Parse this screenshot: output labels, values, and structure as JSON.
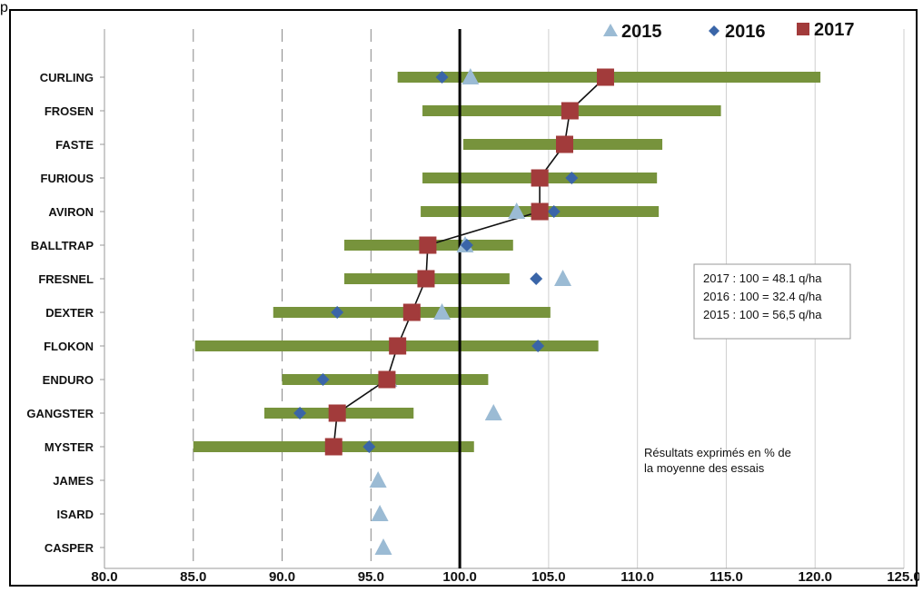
{
  "corner_mark": "p",
  "chart_data": {
    "type": "range-dot",
    "categories": [
      "CURLING",
      "FROSEN",
      "FASTE",
      "FURIOUS",
      "AVIRON",
      "BALLTRAP",
      "FRESNEL",
      "DEXTER",
      "FLOKON",
      "ENDURO",
      "GANGSTER",
      "MYSTER",
      "JAMES",
      "ISARD",
      "CASPER"
    ],
    "xlim": [
      80.0,
      125.0
    ],
    "xticks": [
      "80.0",
      "85.0",
      "90.0",
      "95.0",
      "100.0",
      "105.0",
      "110.0",
      "115.0",
      "120.0",
      "125.0"
    ],
    "xtick_values": [
      80,
      85,
      90,
      95,
      100,
      105,
      110,
      115,
      120,
      125
    ],
    "dashed_gridlines": [
      85,
      90,
      95
    ],
    "reference_line": 100,
    "ranges": [
      [
        96.5,
        120.3
      ],
      [
        97.9,
        114.7
      ],
      [
        100.2,
        111.4
      ],
      [
        97.9,
        111.1
      ],
      [
        97.8,
        111.2
      ],
      [
        93.5,
        103.0
      ],
      [
        93.5,
        102.8
      ],
      [
        89.5,
        105.1
      ],
      [
        85.1,
        107.8
      ],
      [
        90.0,
        101.6
      ],
      [
        89.0,
        97.4
      ],
      [
        85.0,
        100.8
      ],
      null,
      null,
      null
    ],
    "series": [
      {
        "name": "2015",
        "marker": "triangle",
        "color": "#9bbbd4",
        "values": [
          100.6,
          null,
          null,
          null,
          103.2,
          100.3,
          105.8,
          99.0,
          null,
          96.0,
          101.9,
          null,
          95.4,
          95.5,
          95.7
        ]
      },
      {
        "name": "2016",
        "marker": "diamond",
        "color": "#3a65a8",
        "values": [
          99.0,
          null,
          null,
          106.3,
          105.3,
          100.4,
          104.3,
          93.1,
          104.4,
          92.3,
          91.0,
          94.9,
          null,
          null,
          null
        ]
      },
      {
        "name": "2017",
        "marker": "square",
        "color": "#a23b3b",
        "values": [
          108.2,
          106.2,
          105.9,
          104.5,
          104.5,
          98.2,
          98.1,
          97.3,
          96.5,
          95.9,
          93.1,
          92.9,
          null,
          null,
          null
        ]
      }
    ],
    "range_color": "#77933c",
    "annotation_box": [
      "2017 : 100 = 48.1 q/ha",
      "2016 : 100 = 32.4 q/ha",
      "2015 : 100 = 56,5 q/ha"
    ],
    "note": [
      "Résultats exprimés en % de",
      "la moyenne des essais"
    ]
  }
}
